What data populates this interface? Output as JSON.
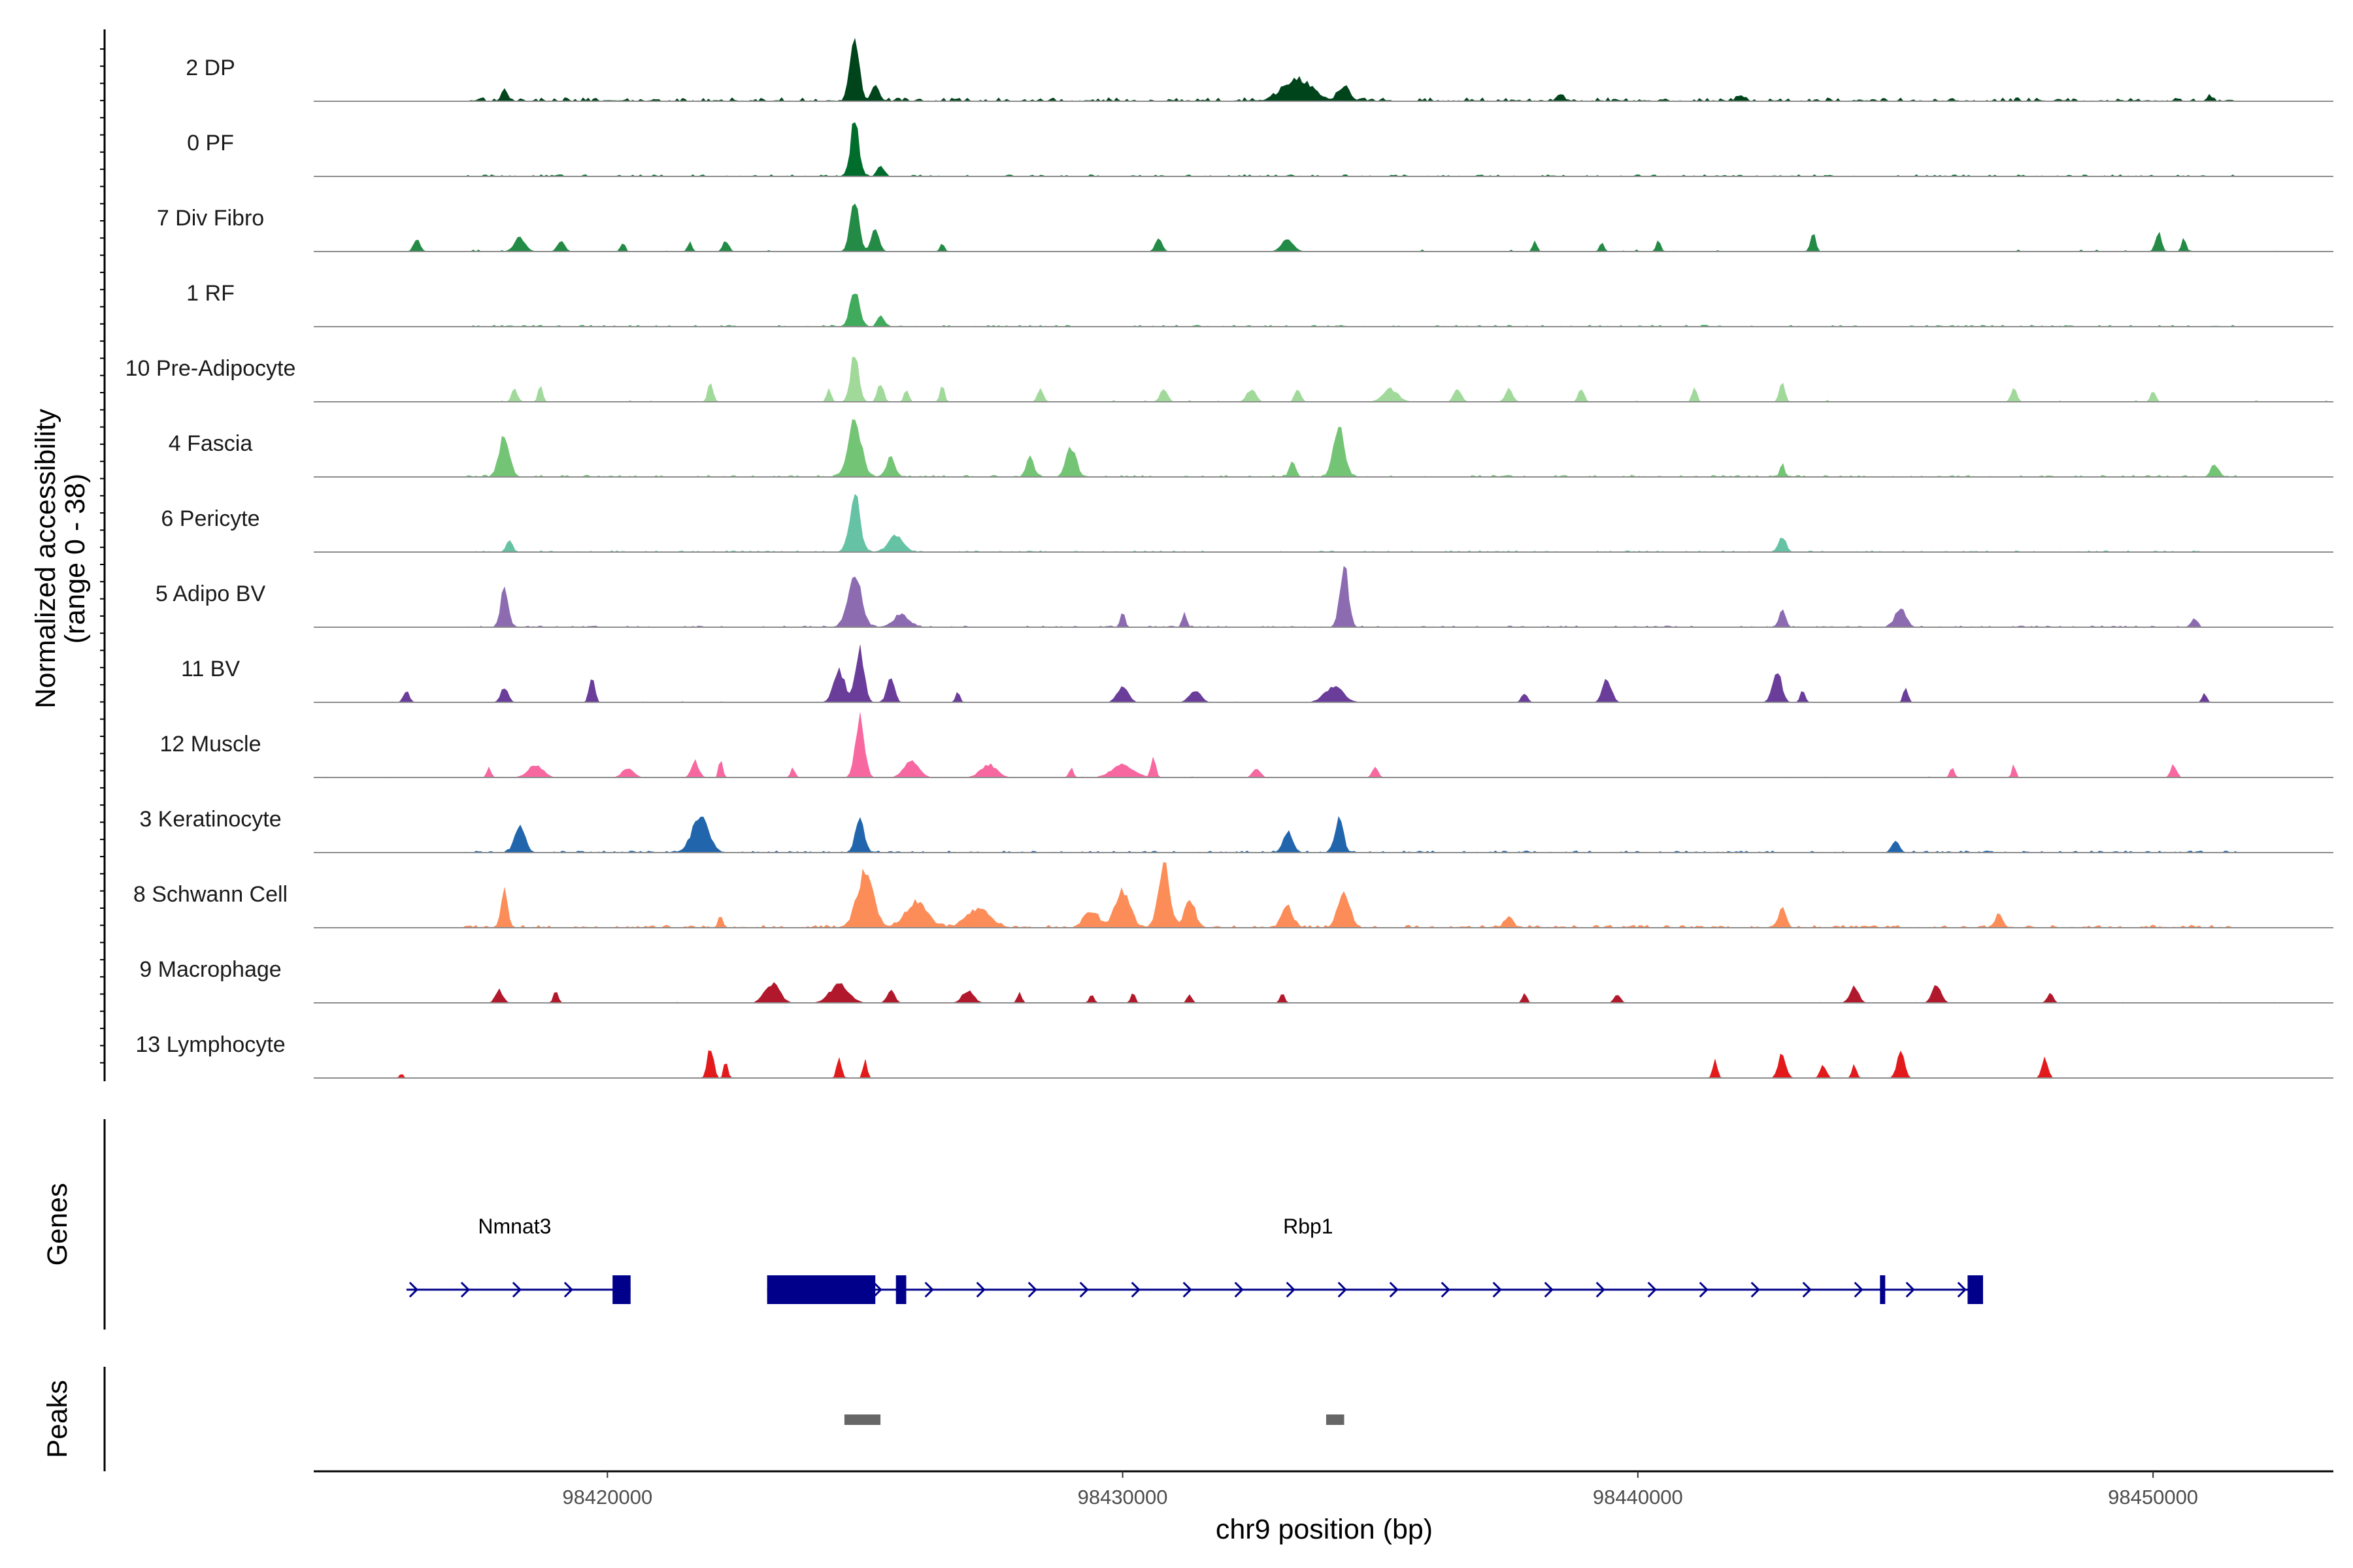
{
  "chart_data": {
    "type": "coverage-track",
    "chromosome": "chr9",
    "xrange": [
      98414300,
      98453500
    ],
    "xticks": [
      98420000,
      98430000,
      98440000,
      98450000
    ],
    "xlabel": "chr9 position (bp)",
    "ylabel_line1": "Normalized accessibility",
    "ylabel_line2": "(range 0 - 38)",
    "yrange": [
      0,
      38
    ],
    "genes_label": "Genes",
    "peaks_label": "Peaks",
    "tracks": [
      {
        "name": "2 DP",
        "color": "#00441b",
        "noise": 0.16,
        "mode": "continuous",
        "peaks": [
          [
            98418000,
            0.18,
            80
          ],
          [
            98424800,
            1.0,
            120
          ],
          [
            98425200,
            0.25,
            100
          ],
          [
            98433400,
            0.35,
            380
          ],
          [
            98434300,
            0.22,
            150
          ],
          [
            98438500,
            0.1,
            100
          ],
          [
            98442000,
            0.08,
            100
          ],
          [
            98451100,
            0.1,
            60
          ]
        ]
      },
      {
        "name": "0 PF",
        "color": "#006d2c",
        "noise": 0.08,
        "mode": "continuous",
        "peaks": [
          [
            98424800,
            0.9,
            110
          ],
          [
            98425300,
            0.18,
            80
          ]
        ]
      },
      {
        "name": "7 Div Fibro",
        "color": "#238b45",
        "noise": 0.05,
        "mode": "sparse",
        "peaks": [
          [
            98416300,
            0.18,
            90
          ],
          [
            98418300,
            0.22,
            150
          ],
          [
            98419100,
            0.15,
            100
          ],
          [
            98420300,
            0.15,
            60
          ],
          [
            98421600,
            0.15,
            60
          ],
          [
            98422300,
            0.17,
            80
          ],
          [
            98424800,
            0.75,
            120
          ],
          [
            98425200,
            0.4,
            100
          ],
          [
            98426500,
            0.12,
            60
          ],
          [
            98430700,
            0.2,
            90
          ],
          [
            98433200,
            0.2,
            160
          ],
          [
            98438000,
            0.15,
            60
          ],
          [
            98439300,
            0.15,
            60
          ],
          [
            98440400,
            0.2,
            60
          ],
          [
            98443400,
            0.3,
            70
          ],
          [
            98450100,
            0.3,
            80
          ],
          [
            98450600,
            0.2,
            60
          ]
        ]
      },
      {
        "name": "1 RF",
        "color": "#41ab5d",
        "noise": 0.07,
        "mode": "continuous",
        "peaks": [
          [
            98424800,
            0.6,
            120
          ],
          [
            98425300,
            0.2,
            80
          ]
        ]
      },
      {
        "name": "10 Pre-Adipocyte",
        "color": "#a1d99b",
        "noise": 0.04,
        "mode": "sparse",
        "peaks": [
          [
            98418200,
            0.2,
            80
          ],
          [
            98418700,
            0.28,
            60
          ],
          [
            98422000,
            0.32,
            70
          ],
          [
            98424300,
            0.2,
            60
          ],
          [
            98424800,
            0.8,
            110
          ],
          [
            98425300,
            0.3,
            80
          ],
          [
            98425800,
            0.2,
            60
          ],
          [
            98426500,
            0.25,
            60
          ],
          [
            98428400,
            0.2,
            80
          ],
          [
            98430800,
            0.2,
            100
          ],
          [
            98432500,
            0.2,
            120
          ],
          [
            98433400,
            0.2,
            80
          ],
          [
            98435200,
            0.2,
            200
          ],
          [
            98436500,
            0.2,
            100
          ],
          [
            98437500,
            0.2,
            100
          ],
          [
            98438900,
            0.2,
            80
          ],
          [
            98441100,
            0.25,
            60
          ],
          [
            98442800,
            0.35,
            70
          ],
          [
            98447300,
            0.2,
            80
          ],
          [
            98450000,
            0.2,
            60
          ]
        ]
      },
      {
        "name": "4 Fascia",
        "color": "#74c476",
        "noise": 0.08,
        "mode": "continuous",
        "peaks": [
          [
            98418000,
            0.65,
            140
          ],
          [
            98424800,
            0.85,
            180
          ],
          [
            98425500,
            0.3,
            120
          ],
          [
            98428200,
            0.3,
            100
          ],
          [
            98429000,
            0.45,
            140
          ],
          [
            98433300,
            0.25,
            80
          ],
          [
            98434200,
            0.75,
            150
          ],
          [
            98442800,
            0.2,
            60
          ],
          [
            98451200,
            0.2,
            100
          ]
        ]
      },
      {
        "name": "6 Pericyte",
        "color": "#66c2a4",
        "noise": 0.06,
        "mode": "continuous",
        "peaks": [
          [
            98418100,
            0.2,
            80
          ],
          [
            98424800,
            0.9,
            140
          ],
          [
            98425600,
            0.25,
            200
          ],
          [
            98442800,
            0.25,
            100
          ]
        ]
      },
      {
        "name": "5 Adipo BV",
        "color": "#8c6bb1",
        "noise": 0.06,
        "mode": "continuous",
        "peaks": [
          [
            98418000,
            0.62,
            100
          ],
          [
            98424800,
            0.82,
            180
          ],
          [
            98425700,
            0.2,
            200
          ],
          [
            98430000,
            0.25,
            60
          ],
          [
            98431200,
            0.2,
            60
          ],
          [
            98434300,
            1.0,
            110
          ],
          [
            98442800,
            0.3,
            80
          ],
          [
            98445100,
            0.32,
            140
          ],
          [
            98450800,
            0.15,
            80
          ]
        ]
      },
      {
        "name": "11 BV",
        "color": "#6a3d9a",
        "noise": 0.02,
        "mode": "sparse",
        "peaks": [
          [
            98416100,
            0.18,
            80
          ],
          [
            98418000,
            0.22,
            100
          ],
          [
            98419700,
            0.45,
            70
          ],
          [
            98424500,
            0.5,
            150
          ],
          [
            98424900,
            0.82,
            120
          ],
          [
            98425500,
            0.4,
            100
          ],
          [
            98426800,
            0.15,
            60
          ],
          [
            98430000,
            0.25,
            150
          ],
          [
            98431400,
            0.2,
            150
          ],
          [
            98434100,
            0.25,
            250
          ],
          [
            98437800,
            0.15,
            80
          ],
          [
            98439400,
            0.35,
            120
          ],
          [
            98442700,
            0.55,
            120
          ],
          [
            98443200,
            0.2,
            60
          ],
          [
            98445200,
            0.25,
            60
          ],
          [
            98451000,
            0.15,
            60
          ]
        ]
      },
      {
        "name": "12 Muscle",
        "color": "#f768a1",
        "noise": 0.02,
        "mode": "sparse",
        "peaks": [
          [
            98417700,
            0.15,
            60
          ],
          [
            98418600,
            0.2,
            200
          ],
          [
            98420400,
            0.15,
            150
          ],
          [
            98421700,
            0.25,
            100
          ],
          [
            98422200,
            0.32,
            50
          ],
          [
            98423600,
            0.15,
            60
          ],
          [
            98424900,
            1.0,
            120
          ],
          [
            98425900,
            0.25,
            200
          ],
          [
            98427400,
            0.2,
            220
          ],
          [
            98429000,
            0.15,
            60
          ],
          [
            98430000,
            0.2,
            300
          ],
          [
            98430600,
            0.35,
            60
          ],
          [
            98432600,
            0.15,
            100
          ],
          [
            98434900,
            0.15,
            80
          ],
          [
            98446100,
            0.15,
            60
          ],
          [
            98447300,
            0.2,
            50
          ],
          [
            98450400,
            0.2,
            80
          ]
        ]
      },
      {
        "name": "3 Keratinocyte",
        "color": "#2166ac",
        "noise": 0.08,
        "mode": "continuous",
        "peaks": [
          [
            98418300,
            0.4,
            140
          ],
          [
            98421800,
            0.55,
            220
          ],
          [
            98424900,
            0.5,
            120
          ],
          [
            98433200,
            0.35,
            120
          ],
          [
            98434200,
            0.55,
            110
          ],
          [
            98445000,
            0.18,
            100
          ]
        ]
      },
      {
        "name": "8 Schwann Cell",
        "color": "#fc8d59",
        "noise": 0.12,
        "mode": "continuous",
        "peaks": [
          [
            98418000,
            0.55,
            90
          ],
          [
            98422200,
            0.2,
            60
          ],
          [
            98425000,
            0.85,
            220
          ],
          [
            98426000,
            0.4,
            300
          ],
          [
            98427200,
            0.3,
            300
          ],
          [
            98429400,
            0.25,
            200
          ],
          [
            98430000,
            0.6,
            200
          ],
          [
            98430800,
            1.0,
            150
          ],
          [
            98431300,
            0.4,
            150
          ],
          [
            98433200,
            0.3,
            150
          ],
          [
            98434300,
            0.55,
            160
          ],
          [
            98437500,
            0.2,
            100
          ],
          [
            98442800,
            0.3,
            100
          ],
          [
            98447000,
            0.2,
            100
          ]
        ]
      },
      {
        "name": "9 Macrophage",
        "color": "#b2182b",
        "noise": 0.02,
        "mode": "sparse",
        "peaks": [
          [
            98417900,
            0.2,
            100
          ],
          [
            98419000,
            0.2,
            60
          ],
          [
            98423200,
            0.3,
            200
          ],
          [
            98424500,
            0.3,
            250
          ],
          [
            98425500,
            0.2,
            100
          ],
          [
            98427000,
            0.2,
            150
          ],
          [
            98428000,
            0.15,
            60
          ],
          [
            98429400,
            0.15,
            60
          ],
          [
            98430200,
            0.15,
            60
          ],
          [
            98431300,
            0.15,
            60
          ],
          [
            98433100,
            0.15,
            60
          ],
          [
            98437800,
            0.15,
            60
          ],
          [
            98439600,
            0.15,
            80
          ],
          [
            98444200,
            0.25,
            120
          ],
          [
            98445800,
            0.3,
            120
          ],
          [
            98448000,
            0.15,
            80
          ]
        ]
      },
      {
        "name": "13 Lymphocyte",
        "color": "#e31a1c",
        "noise": 0.0,
        "mode": "sparse",
        "peaks": [
          [
            98416000,
            0.25,
            20
          ],
          [
            98422000,
            0.5,
            80
          ],
          [
            98422300,
            0.3,
            50
          ],
          [
            98424500,
            0.35,
            60
          ],
          [
            98425000,
            0.35,
            50
          ],
          [
            98441500,
            0.3,
            60
          ],
          [
            98442800,
            0.4,
            100
          ],
          [
            98443600,
            0.2,
            80
          ],
          [
            98444200,
            0.2,
            60
          ],
          [
            98445100,
            0.4,
            100
          ],
          [
            98447900,
            0.3,
            80
          ]
        ]
      }
    ],
    "genes": [
      {
        "name": "Nmnat3",
        "label_x": 98418200,
        "start": 98416100,
        "end": 98420450,
        "strand": "+",
        "exons": [
          [
            98420100,
            98420450
          ]
        ]
      },
      {
        "name": "Rbp1",
        "label_x": 98433600,
        "start": 98423100,
        "end": 98446700,
        "strand": "+",
        "exons": [
          [
            98423100,
            98425200
          ],
          [
            98425600,
            98425800
          ],
          [
            98444700,
            98444800
          ],
          [
            98446400,
            98446700
          ]
        ]
      }
    ],
    "peaks": [
      [
        98424600,
        98425300
      ],
      [
        98433950,
        98434300
      ]
    ],
    "gene_color": "#00008b",
    "peak_color": "#666666"
  }
}
